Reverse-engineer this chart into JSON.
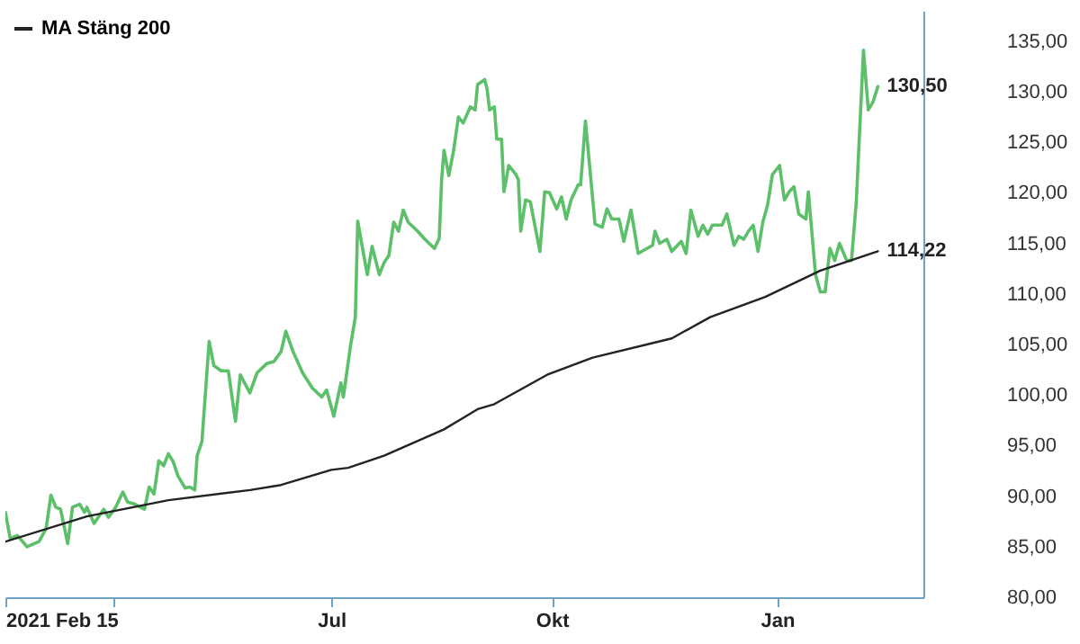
{
  "chart_data": {
    "type": "line",
    "x": [
      "2021-02-15",
      "2021-02-17",
      "2021-02-20",
      "2021-02-24",
      "2021-03-01",
      "2021-03-04",
      "2021-03-06",
      "2021-03-08",
      "2021-03-10",
      "2021-03-13",
      "2021-03-15",
      "2021-03-18",
      "2021-03-20",
      "2021-03-21",
      "2021-03-24",
      "2021-03-28",
      "2021-03-30",
      "2021-04-02",
      "2021-04-05",
      "2021-04-07",
      "2021-04-10",
      "2021-04-14",
      "2021-04-16",
      "2021-04-18",
      "2021-04-20",
      "2021-04-22",
      "2021-04-24",
      "2021-04-26",
      "2021-04-28",
      "2021-05-01",
      "2021-05-03",
      "2021-05-05",
      "2021-05-06",
      "2021-05-08",
      "2021-05-11",
      "2021-05-13",
      "2021-05-16",
      "2021-05-19",
      "2021-05-22",
      "2021-05-24",
      "2021-05-28",
      "2021-05-31",
      "2021-06-04",
      "2021-06-07",
      "2021-06-10",
      "2021-06-12",
      "2021-06-15",
      "2021-06-19",
      "2021-06-23",
      "2021-06-27",
      "2021-06-29",
      "2021-07-02",
      "2021-07-05",
      "2021-07-06",
      "2021-07-09",
      "2021-07-11",
      "2021-07-12",
      "2021-07-14",
      "2021-07-16",
      "2021-07-18",
      "2021-07-21",
      "2021-07-23",
      "2021-07-25",
      "2021-07-27",
      "2021-07-29",
      "2021-07-31",
      "2021-08-02",
      "2021-08-06",
      "2021-08-09",
      "2021-08-13",
      "2021-08-15",
      "2021-08-16",
      "2021-08-17",
      "2021-08-19",
      "2021-08-21",
      "2021-08-23",
      "2021-08-25",
      "2021-08-28",
      "2021-08-30",
      "2021-08-31",
      "2021-09-03",
      "2021-09-04",
      "2021-09-05",
      "2021-09-07",
      "2021-09-08",
      "2021-09-10",
      "2021-09-11",
      "2021-09-13",
      "2021-09-16",
      "2021-09-17",
      "2021-09-18",
      "2021-09-20",
      "2021-09-22",
      "2021-09-26",
      "2021-09-28",
      "2021-09-30",
      "2021-10-03",
      "2021-10-05",
      "2021-10-07",
      "2021-10-09",
      "2021-10-12",
      "2021-10-13",
      "2021-10-15",
      "2021-10-19",
      "2021-10-22",
      "2021-10-24",
      "2021-10-26",
      "2021-10-29",
      "2021-10-31",
      "2021-11-03",
      "2021-11-06",
      "2021-11-12",
      "2021-11-13",
      "2021-11-15",
      "2021-11-18",
      "2021-11-20",
      "2021-11-24",
      "2021-11-26",
      "2021-11-28",
      "2021-12-01",
      "2021-12-03",
      "2021-12-05",
      "2021-12-07",
      "2021-12-11",
      "2021-12-13",
      "2021-12-16",
      "2021-12-18",
      "2021-12-20",
      "2021-12-22",
      "2021-12-24",
      "2021-12-26",
      "2021-12-28",
      "2021-12-30",
      "2022-01-01",
      "2022-01-04",
      "2022-01-06",
      "2022-01-08",
      "2022-01-10",
      "2022-01-12",
      "2022-01-15",
      "2022-01-16",
      "2022-01-19",
      "2022-01-21",
      "2022-01-23",
      "2022-01-25",
      "2022-01-27",
      "2022-01-29",
      "2022-02-01",
      "2022-02-03",
      "2022-02-05",
      "2022-02-08",
      "2022-02-10",
      "2022-02-12",
      "2022-02-14"
    ],
    "series": [
      {
        "color": "#5cbf69",
        "values": [
          88.4,
          85.8,
          86.1,
          85.0,
          85.5,
          86.8,
          90.1,
          88.9,
          88.7,
          85.3,
          88.9,
          89.2,
          88.4,
          88.9,
          87.3,
          88.7,
          87.9,
          88.9,
          90.4,
          89.4,
          89.2,
          88.7,
          90.9,
          90.2,
          93.5,
          93.0,
          94.2,
          93.4,
          92.0,
          90.8,
          90.9,
          90.6,
          94.0,
          95.4,
          105.3,
          102.9,
          102.4,
          102.4,
          97.4,
          102.0,
          100.2,
          102.2,
          103.1,
          103.3,
          104.3,
          106.3,
          104.3,
          102.2,
          100.7,
          99.8,
          100.5,
          97.9,
          101.2,
          99.8,
          104.9,
          107.7,
          117.2,
          114.5,
          111.9,
          114.7,
          111.9,
          113.1,
          113.8,
          117.1,
          116.2,
          118.3,
          117.1,
          116.2,
          115.4,
          114.5,
          115.5,
          121.3,
          124.2,
          121.7,
          124.2,
          127.5,
          126.9,
          128.5,
          128.2,
          130.7,
          131.2,
          130.2,
          128.2,
          128.5,
          125.3,
          125.3,
          120.1,
          122.7,
          121.8,
          121.3,
          116.2,
          119.3,
          119.1,
          114.2,
          120.1,
          120.0,
          118.4,
          119.6,
          117.4,
          119.3,
          120.8,
          120.8,
          127.1,
          116.9,
          116.6,
          118.4,
          117.4,
          117.4,
          115.2,
          118.3,
          114.0,
          114.8,
          116.2,
          115.0,
          115.4,
          114.2,
          115.2,
          114.0,
          118.3,
          115.7,
          116.8,
          115.9,
          116.8,
          116.8,
          117.9,
          114.8,
          115.7,
          115.4,
          116.2,
          116.8,
          114.2,
          117.1,
          118.8,
          121.8,
          122.7,
          119.3,
          120.1,
          120.6,
          117.9,
          117.4,
          120.1,
          111.9,
          110.2,
          110.2,
          114.5,
          113.3,
          115.0,
          113.3,
          113.3,
          119.1,
          134.1,
          128.2,
          129.0,
          130.5
        ]
      },
      {
        "name": "MA Stäng 200",
        "color": "#222222",
        "x": [
          "2021-02-15",
          "2021-03-21",
          "2021-04-24",
          "2021-05-28",
          "2021-06-10",
          "2021-07-01",
          "2021-07-08",
          "2021-07-23",
          "2021-08-17",
          "2021-08-31",
          "2021-09-07",
          "2021-09-29",
          "2021-10-18",
          "2021-11-20",
          "2021-12-06",
          "2021-12-29",
          "2022-01-21",
          "2022-02-14"
        ],
        "values": [
          85.5,
          88.0,
          89.6,
          90.6,
          91.1,
          92.6,
          92.8,
          94.0,
          96.6,
          98.6,
          99.1,
          102.0,
          103.7,
          105.6,
          107.7,
          109.7,
          112.3,
          114.22
        ]
      }
    ],
    "xlim": [
      "2021-02-15",
      "2022-03-05"
    ],
    "xticks": [
      {
        "value": "2021-02-15",
        "label": "2021 Feb 15"
      },
      {
        "value": "2021-04-01",
        "label": null
      },
      {
        "value": "2021-07-01",
        "label": "Jul"
      },
      {
        "value": "2021-10-01",
        "label": "Okt"
      },
      {
        "value": "2022-01-03",
        "label": "Jan"
      }
    ],
    "ylim": [
      80,
      138
    ],
    "yticks": [
      {
        "value": 80,
        "label": "80,00"
      },
      {
        "value": 85,
        "label": "85,00"
      },
      {
        "value": 90,
        "label": "90,00"
      },
      {
        "value": 95,
        "label": "95,00"
      },
      {
        "value": 100,
        "label": "100,00"
      },
      {
        "value": 105,
        "label": "105,00"
      },
      {
        "value": 110,
        "label": "110,00"
      },
      {
        "value": 115,
        "label": "115,00"
      },
      {
        "value": 120,
        "label": "120,00"
      },
      {
        "value": 125,
        "label": "125,00"
      },
      {
        "value": 130,
        "label": "130,00"
      },
      {
        "value": 135,
        "label": "135,00"
      }
    ],
    "annotations": [
      {
        "text": "130,50",
        "x": "2022-02-14",
        "y": 130.5
      },
      {
        "text": "114,22",
        "x": "2022-02-14",
        "y": 114.22
      }
    ],
    "grid": false,
    "legend": "top left"
  }
}
